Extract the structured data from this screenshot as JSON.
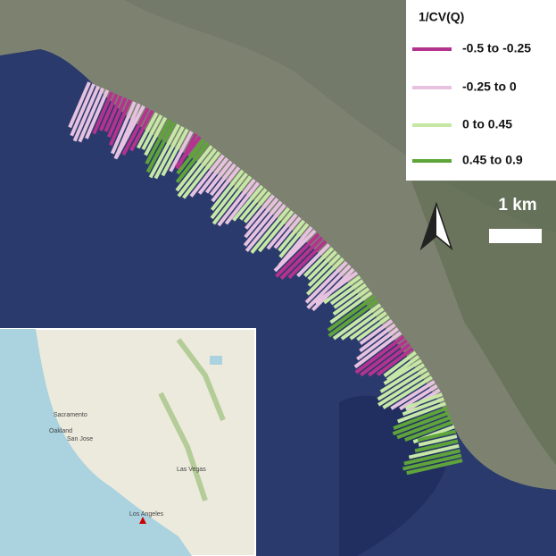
{
  "legend": {
    "title": "1/CV(Q)",
    "items": [
      {
        "label": "-0.5 to -0.25",
        "color": "#b3338f"
      },
      {
        "label": "-0.25 to 0",
        "color": "#e6c2e0"
      },
      {
        "label": "0 to 0.45",
        "color": "#c6e7a6"
      },
      {
        "label": "0.45 to 0.9",
        "color": "#5fa43a"
      }
    ]
  },
  "scale_bar": {
    "label": "1 km"
  },
  "inset_map": {
    "places": [
      "Sacramento",
      "Oakland",
      "San Jose",
      "Las Vegas",
      "Los Angeles"
    ]
  }
}
